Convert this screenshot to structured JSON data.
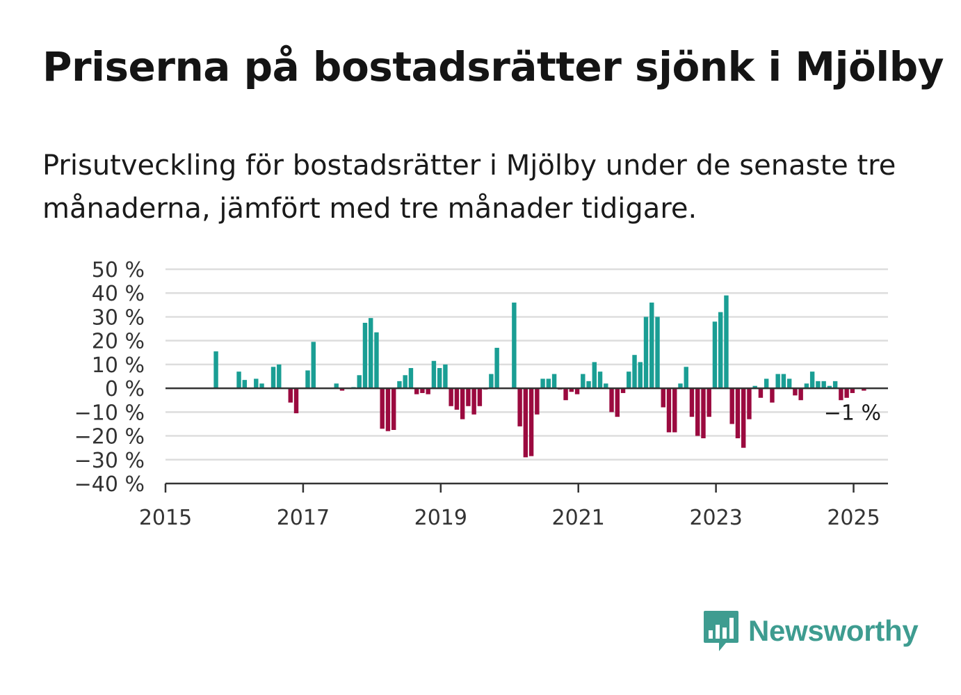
{
  "title": "Priserna på bostadsrätter sjönk i Mjölby",
  "subtitle": "Prisutveckling för bostadsrätter i Mjölby under de senaste tre månaderna, jämfört med tre månader tidigare.",
  "brand": {
    "name": "Newsworthy",
    "icon": "newsworthy-logo-icon",
    "color": "#3e9c90"
  },
  "chart_data": {
    "type": "bar",
    "title": "",
    "xlabel": "",
    "ylabel": "",
    "y_unit": "%",
    "ylim": [
      -40,
      50
    ],
    "xlim": [
      "2015-01",
      "2025-07"
    ],
    "y_ticks": [
      50,
      40,
      30,
      20,
      10,
      0,
      -10,
      -20,
      -30,
      -40
    ],
    "y_tick_labels": [
      "50 %",
      "40 %",
      "30 %",
      "20 %",
      "10 %",
      "0 %",
      "−10 %",
      "−20 %",
      "−30 %",
      "−40 %"
    ],
    "x_tick_labels": [
      "2015",
      "2017",
      "2019",
      "2021",
      "2023",
      "2025"
    ],
    "grid": true,
    "colors": {
      "positive": "#1a9e94",
      "negative": "#9b0a3f",
      "grid": "#dddddd",
      "axis": "#333333"
    },
    "last_value_label": "−1 %",
    "series": [
      {
        "values": [
          {
            "x": "2015-10",
            "y": 15.5
          },
          {
            "x": "2016-02",
            "y": 7
          },
          {
            "x": "2016-03",
            "y": 3.5
          },
          {
            "x": "2016-05",
            "y": 4
          },
          {
            "x": "2016-06",
            "y": 2
          },
          {
            "x": "2016-08",
            "y": 9
          },
          {
            "x": "2016-09",
            "y": 10
          },
          {
            "x": "2016-11",
            "y": -6
          },
          {
            "x": "2016-12",
            "y": -10.5
          },
          {
            "x": "2017-02",
            "y": 7.5
          },
          {
            "x": "2017-03",
            "y": 19.5
          },
          {
            "x": "2017-07",
            "y": 2
          },
          {
            "x": "2017-08",
            "y": -1
          },
          {
            "x": "2017-10",
            "y": 0.5
          },
          {
            "x": "2017-11",
            "y": 5.5
          },
          {
            "x": "2017-12",
            "y": 27.5
          },
          {
            "x": "2018-01",
            "y": 29.5
          },
          {
            "x": "2018-02",
            "y": 23.5
          },
          {
            "x": "2018-03",
            "y": -17
          },
          {
            "x": "2018-04",
            "y": -18
          },
          {
            "x": "2018-05",
            "y": -17.5
          },
          {
            "x": "2018-06",
            "y": 3
          },
          {
            "x": "2018-07",
            "y": 5.5
          },
          {
            "x": "2018-08",
            "y": 8.5
          },
          {
            "x": "2018-09",
            "y": -2.5
          },
          {
            "x": "2018-10",
            "y": -2
          },
          {
            "x": "2018-11",
            "y": -2.5
          },
          {
            "x": "2018-12",
            "y": 11.5
          },
          {
            "x": "2019-01",
            "y": 8.5
          },
          {
            "x": "2019-02",
            "y": 10
          },
          {
            "x": "2019-03",
            "y": -7.5
          },
          {
            "x": "2019-04",
            "y": -9
          },
          {
            "x": "2019-05",
            "y": -13
          },
          {
            "x": "2019-06",
            "y": -7.5
          },
          {
            "x": "2019-07",
            "y": -11
          },
          {
            "x": "2019-08",
            "y": -7.5
          },
          {
            "x": "2019-09",
            "y": -0.5
          },
          {
            "x": "2019-10",
            "y": 6
          },
          {
            "x": "2019-11",
            "y": 17
          },
          {
            "x": "2020-02",
            "y": 36
          },
          {
            "x": "2020-03",
            "y": -16
          },
          {
            "x": "2020-04",
            "y": -29
          },
          {
            "x": "2020-05",
            "y": -28.5
          },
          {
            "x": "2020-06",
            "y": -11
          },
          {
            "x": "2020-07",
            "y": 4
          },
          {
            "x": "2020-08",
            "y": 4
          },
          {
            "x": "2020-09",
            "y": 6
          },
          {
            "x": "2020-10",
            "y": -0.5
          },
          {
            "x": "2020-11",
            "y": -5
          },
          {
            "x": "2020-12",
            "y": -1.5
          },
          {
            "x": "2021-01",
            "y": -2.5
          },
          {
            "x": "2021-02",
            "y": 6
          },
          {
            "x": "2021-03",
            "y": 3
          },
          {
            "x": "2021-04",
            "y": 11
          },
          {
            "x": "2021-05",
            "y": 7
          },
          {
            "x": "2021-06",
            "y": 2
          },
          {
            "x": "2021-07",
            "y": -10
          },
          {
            "x": "2021-08",
            "y": -12
          },
          {
            "x": "2021-09",
            "y": -2
          },
          {
            "x": "2021-10",
            "y": 7
          },
          {
            "x": "2021-11",
            "y": 14
          },
          {
            "x": "2021-12",
            "y": 11
          },
          {
            "x": "2022-01",
            "y": 30
          },
          {
            "x": "2022-02",
            "y": 36
          },
          {
            "x": "2022-03",
            "y": 30
          },
          {
            "x": "2022-04",
            "y": -8
          },
          {
            "x": "2022-05",
            "y": -18.5
          },
          {
            "x": "2022-06",
            "y": -18.5
          },
          {
            "x": "2022-07",
            "y": 2
          },
          {
            "x": "2022-08",
            "y": 9
          },
          {
            "x": "2022-09",
            "y": -12
          },
          {
            "x": "2022-10",
            "y": -20
          },
          {
            "x": "2022-11",
            "y": -21
          },
          {
            "x": "2022-12",
            "y": -12
          },
          {
            "x": "2023-01",
            "y": 28
          },
          {
            "x": "2023-02",
            "y": 32
          },
          {
            "x": "2023-03",
            "y": 39
          },
          {
            "x": "2023-04",
            "y": -15
          },
          {
            "x": "2023-05",
            "y": -21
          },
          {
            "x": "2023-06",
            "y": -25
          },
          {
            "x": "2023-07",
            "y": -13
          },
          {
            "x": "2023-08",
            "y": 1
          },
          {
            "x": "2023-09",
            "y": -4
          },
          {
            "x": "2023-10",
            "y": 4
          },
          {
            "x": "2023-11",
            "y": -6
          },
          {
            "x": "2023-12",
            "y": 6
          },
          {
            "x": "2024-01",
            "y": 6
          },
          {
            "x": "2024-02",
            "y": 4
          },
          {
            "x": "2024-03",
            "y": -3
          },
          {
            "x": "2024-04",
            "y": -5
          },
          {
            "x": "2024-05",
            "y": 2
          },
          {
            "x": "2024-06",
            "y": 7
          },
          {
            "x": "2024-07",
            "y": 3
          },
          {
            "x": "2024-08",
            "y": 3
          },
          {
            "x": "2024-09",
            "y": 1
          },
          {
            "x": "2024-10",
            "y": 3
          },
          {
            "x": "2024-11",
            "y": -5
          },
          {
            "x": "2024-12",
            "y": -4
          },
          {
            "x": "2025-01",
            "y": -2
          },
          {
            "x": "2025-03",
            "y": -1
          }
        ]
      }
    ]
  }
}
